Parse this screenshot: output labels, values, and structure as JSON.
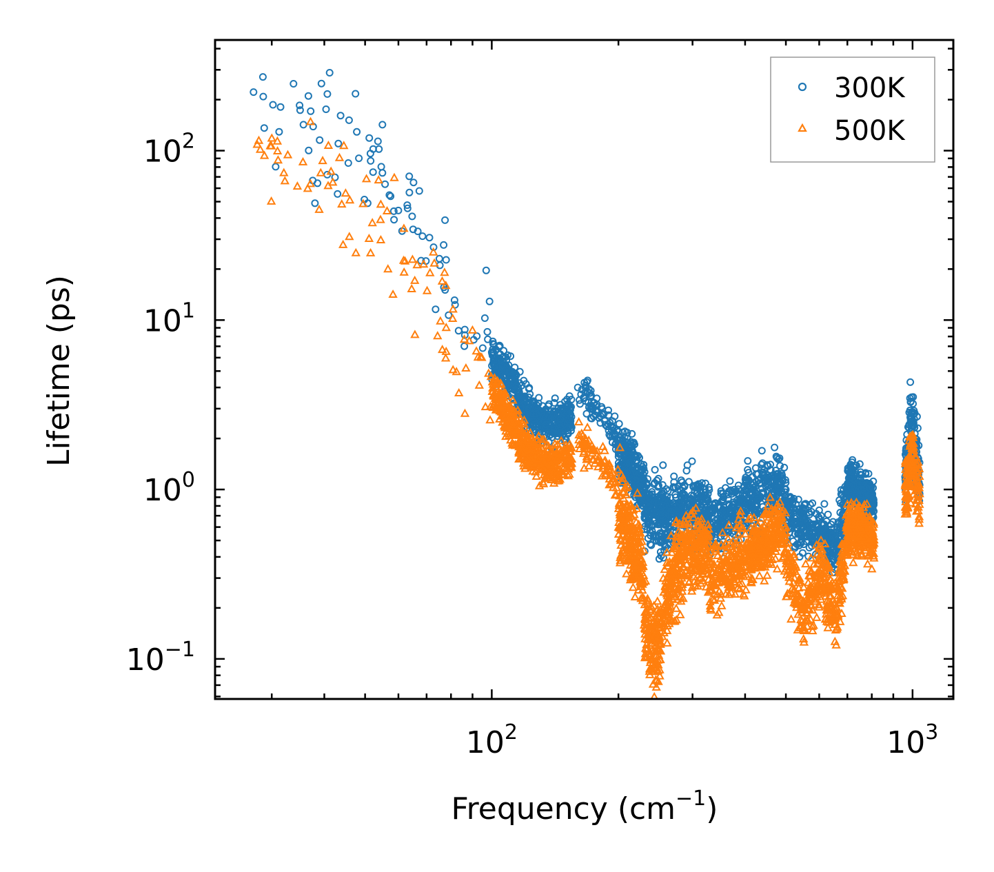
{
  "chart_data": {
    "type": "scatter",
    "title": "",
    "xlabel": "Frequency (cm",
    "xlabel_sup": "−1",
    "xlabel_end": ")",
    "ylabel": "Lifetime (ps)",
    "xscale": "log",
    "yscale": "log",
    "xlim": [
      22,
      1250
    ],
    "ylim": [
      0.058,
      450
    ],
    "x_ticks": [
      {
        "value": 100,
        "base": "10",
        "exp": "2"
      },
      {
        "value": 1000,
        "base": "10",
        "exp": "3"
      }
    ],
    "y_ticks": [
      {
        "value": 0.1,
        "base": "10",
        "exp": "−1"
      },
      {
        "value": 1,
        "base": "10",
        "exp": "0"
      },
      {
        "value": 10,
        "base": "10",
        "exp": "1"
      },
      {
        "value": 100,
        "base": "10",
        "exp": "2"
      }
    ],
    "legend_position": "top-right",
    "series": [
      {
        "name": "300K",
        "marker": "circle",
        "color": "#1f77b4",
        "segments": [
          {
            "x_range": [
              27,
              100
            ],
            "y_anchors": [
              [
                27,
                160
              ],
              [
                40,
                120
              ],
              [
                55,
                70
              ],
              [
                70,
                35
              ],
              [
                80,
                20
              ],
              [
                90,
                10
              ],
              [
                100,
                7
              ]
            ],
            "scatter": 0.35,
            "n": 90
          },
          {
            "x_range": [
              100,
              155
            ],
            "y_anchors": [
              [
                100,
                6
              ],
              [
                110,
                4.5
              ],
              [
                120,
                3
              ],
              [
                135,
                2.4
              ],
              [
                155,
                2.7
              ]
            ],
            "scatter": 0.12,
            "n": 500
          },
          {
            "x_range": [
              160,
              200
            ],
            "y_anchors": [
              [
                160,
                3.8
              ],
              [
                180,
                3
              ],
              [
                200,
                2
              ]
            ],
            "scatter": 0.1,
            "n": 80
          },
          {
            "x_range": [
              200,
              230
            ],
            "y_anchors": [
              [
                200,
                1.6
              ],
              [
                215,
                1.4
              ],
              [
                230,
                1.0
              ]
            ],
            "scatter": 0.15,
            "n": 250
          },
          {
            "x_range": [
              230,
              330
            ],
            "y_anchors": [
              [
                230,
                0.75
              ],
              [
                260,
                0.7
              ],
              [
                290,
                0.8
              ],
              [
                330,
                0.7
              ]
            ],
            "scatter": 0.2,
            "n": 500
          },
          {
            "x_range": [
              330,
              500
            ],
            "y_anchors": [
              [
                330,
                0.6
              ],
              [
                400,
                0.8
              ],
              [
                480,
                1.1
              ],
              [
                500,
                0.9
              ]
            ],
            "scatter": 0.18,
            "n": 450
          },
          {
            "x_range": [
              500,
              620
            ],
            "y_anchors": [
              [
                500,
                0.7
              ],
              [
                560,
                0.6
              ],
              [
                620,
                0.55
              ]
            ],
            "scatter": 0.15,
            "n": 200
          },
          {
            "x_range": [
              620,
              700
            ],
            "y_anchors": [
              [
                620,
                0.5
              ],
              [
                660,
                0.45
              ],
              [
                700,
                0.9
              ]
            ],
            "scatter": 0.15,
            "n": 150
          },
          {
            "x_range": [
              700,
              810
            ],
            "y_anchors": [
              [
                700,
                1.1
              ],
              [
                750,
                1.0
              ],
              [
                810,
                0.85
              ]
            ],
            "scatter": 0.12,
            "n": 300
          },
          {
            "x_range": [
              960,
              1040
            ],
            "y_anchors": [
              [
                960,
                1.2
              ],
              [
                995,
                2.5
              ],
              [
                1040,
                1.1
              ]
            ],
            "scatter": 0.2,
            "n": 150
          }
        ]
      },
      {
        "name": "500K",
        "marker": "triangle",
        "color": "#ff7f0e",
        "segments": [
          {
            "x_range": [
              27,
              100
            ],
            "y_anchors": [
              [
                27,
                120
              ],
              [
                40,
                70
              ],
              [
                55,
                35
              ],
              [
                70,
                18
              ],
              [
                80,
                10
              ],
              [
                90,
                6
              ],
              [
                100,
                4.5
              ]
            ],
            "scatter": 0.35,
            "n": 90
          },
          {
            "x_range": [
              100,
              155
            ],
            "y_anchors": [
              [
                100,
                4
              ],
              [
                110,
                2.6
              ],
              [
                120,
                1.8
              ],
              [
                135,
                1.4
              ],
              [
                155,
                1.5
              ]
            ],
            "scatter": 0.12,
            "n": 500
          },
          {
            "x_range": [
              160,
              200
            ],
            "y_anchors": [
              [
                160,
                2.0
              ],
              [
                180,
                1.5
              ],
              [
                200,
                1.0
              ]
            ],
            "scatter": 0.1,
            "n": 80
          },
          {
            "x_range": [
              200,
              230
            ],
            "y_anchors": [
              [
                200,
                0.8
              ],
              [
                215,
                0.5
              ],
              [
                230,
                0.3
              ]
            ],
            "scatter": 0.25,
            "n": 250
          },
          {
            "x_range": [
              230,
              330
            ],
            "y_anchors": [
              [
                230,
                0.15
              ],
              [
                245,
                0.1
              ],
              [
                260,
                0.25
              ],
              [
                290,
                0.45
              ],
              [
                330,
                0.4
              ]
            ],
            "scatter": 0.25,
            "n": 500
          },
          {
            "x_range": [
              330,
              500
            ],
            "y_anchors": [
              [
                330,
                0.3
              ],
              [
                400,
                0.4
              ],
              [
                480,
                0.6
              ],
              [
                500,
                0.5
              ]
            ],
            "scatter": 0.2,
            "n": 450
          },
          {
            "x_range": [
              500,
              620
            ],
            "y_anchors": [
              [
                500,
                0.4
              ],
              [
                550,
                0.18
              ],
              [
                580,
                0.25
              ],
              [
                620,
                0.35
              ]
            ],
            "scatter": 0.2,
            "n": 200
          },
          {
            "x_range": [
              620,
              700
            ],
            "y_anchors": [
              [
                620,
                0.25
              ],
              [
                660,
                0.2
              ],
              [
                700,
                0.5
              ]
            ],
            "scatter": 0.2,
            "n": 150
          },
          {
            "x_range": [
              700,
              810
            ],
            "y_anchors": [
              [
                700,
                0.55
              ],
              [
                750,
                0.6
              ],
              [
                810,
                0.5
              ]
            ],
            "scatter": 0.15,
            "n": 300
          },
          {
            "x_range": [
              960,
              1040
            ],
            "y_anchors": [
              [
                960,
                0.9
              ],
              [
                995,
                1.6
              ],
              [
                1040,
                0.9
              ]
            ],
            "scatter": 0.2,
            "n": 150
          }
        ]
      }
    ]
  }
}
